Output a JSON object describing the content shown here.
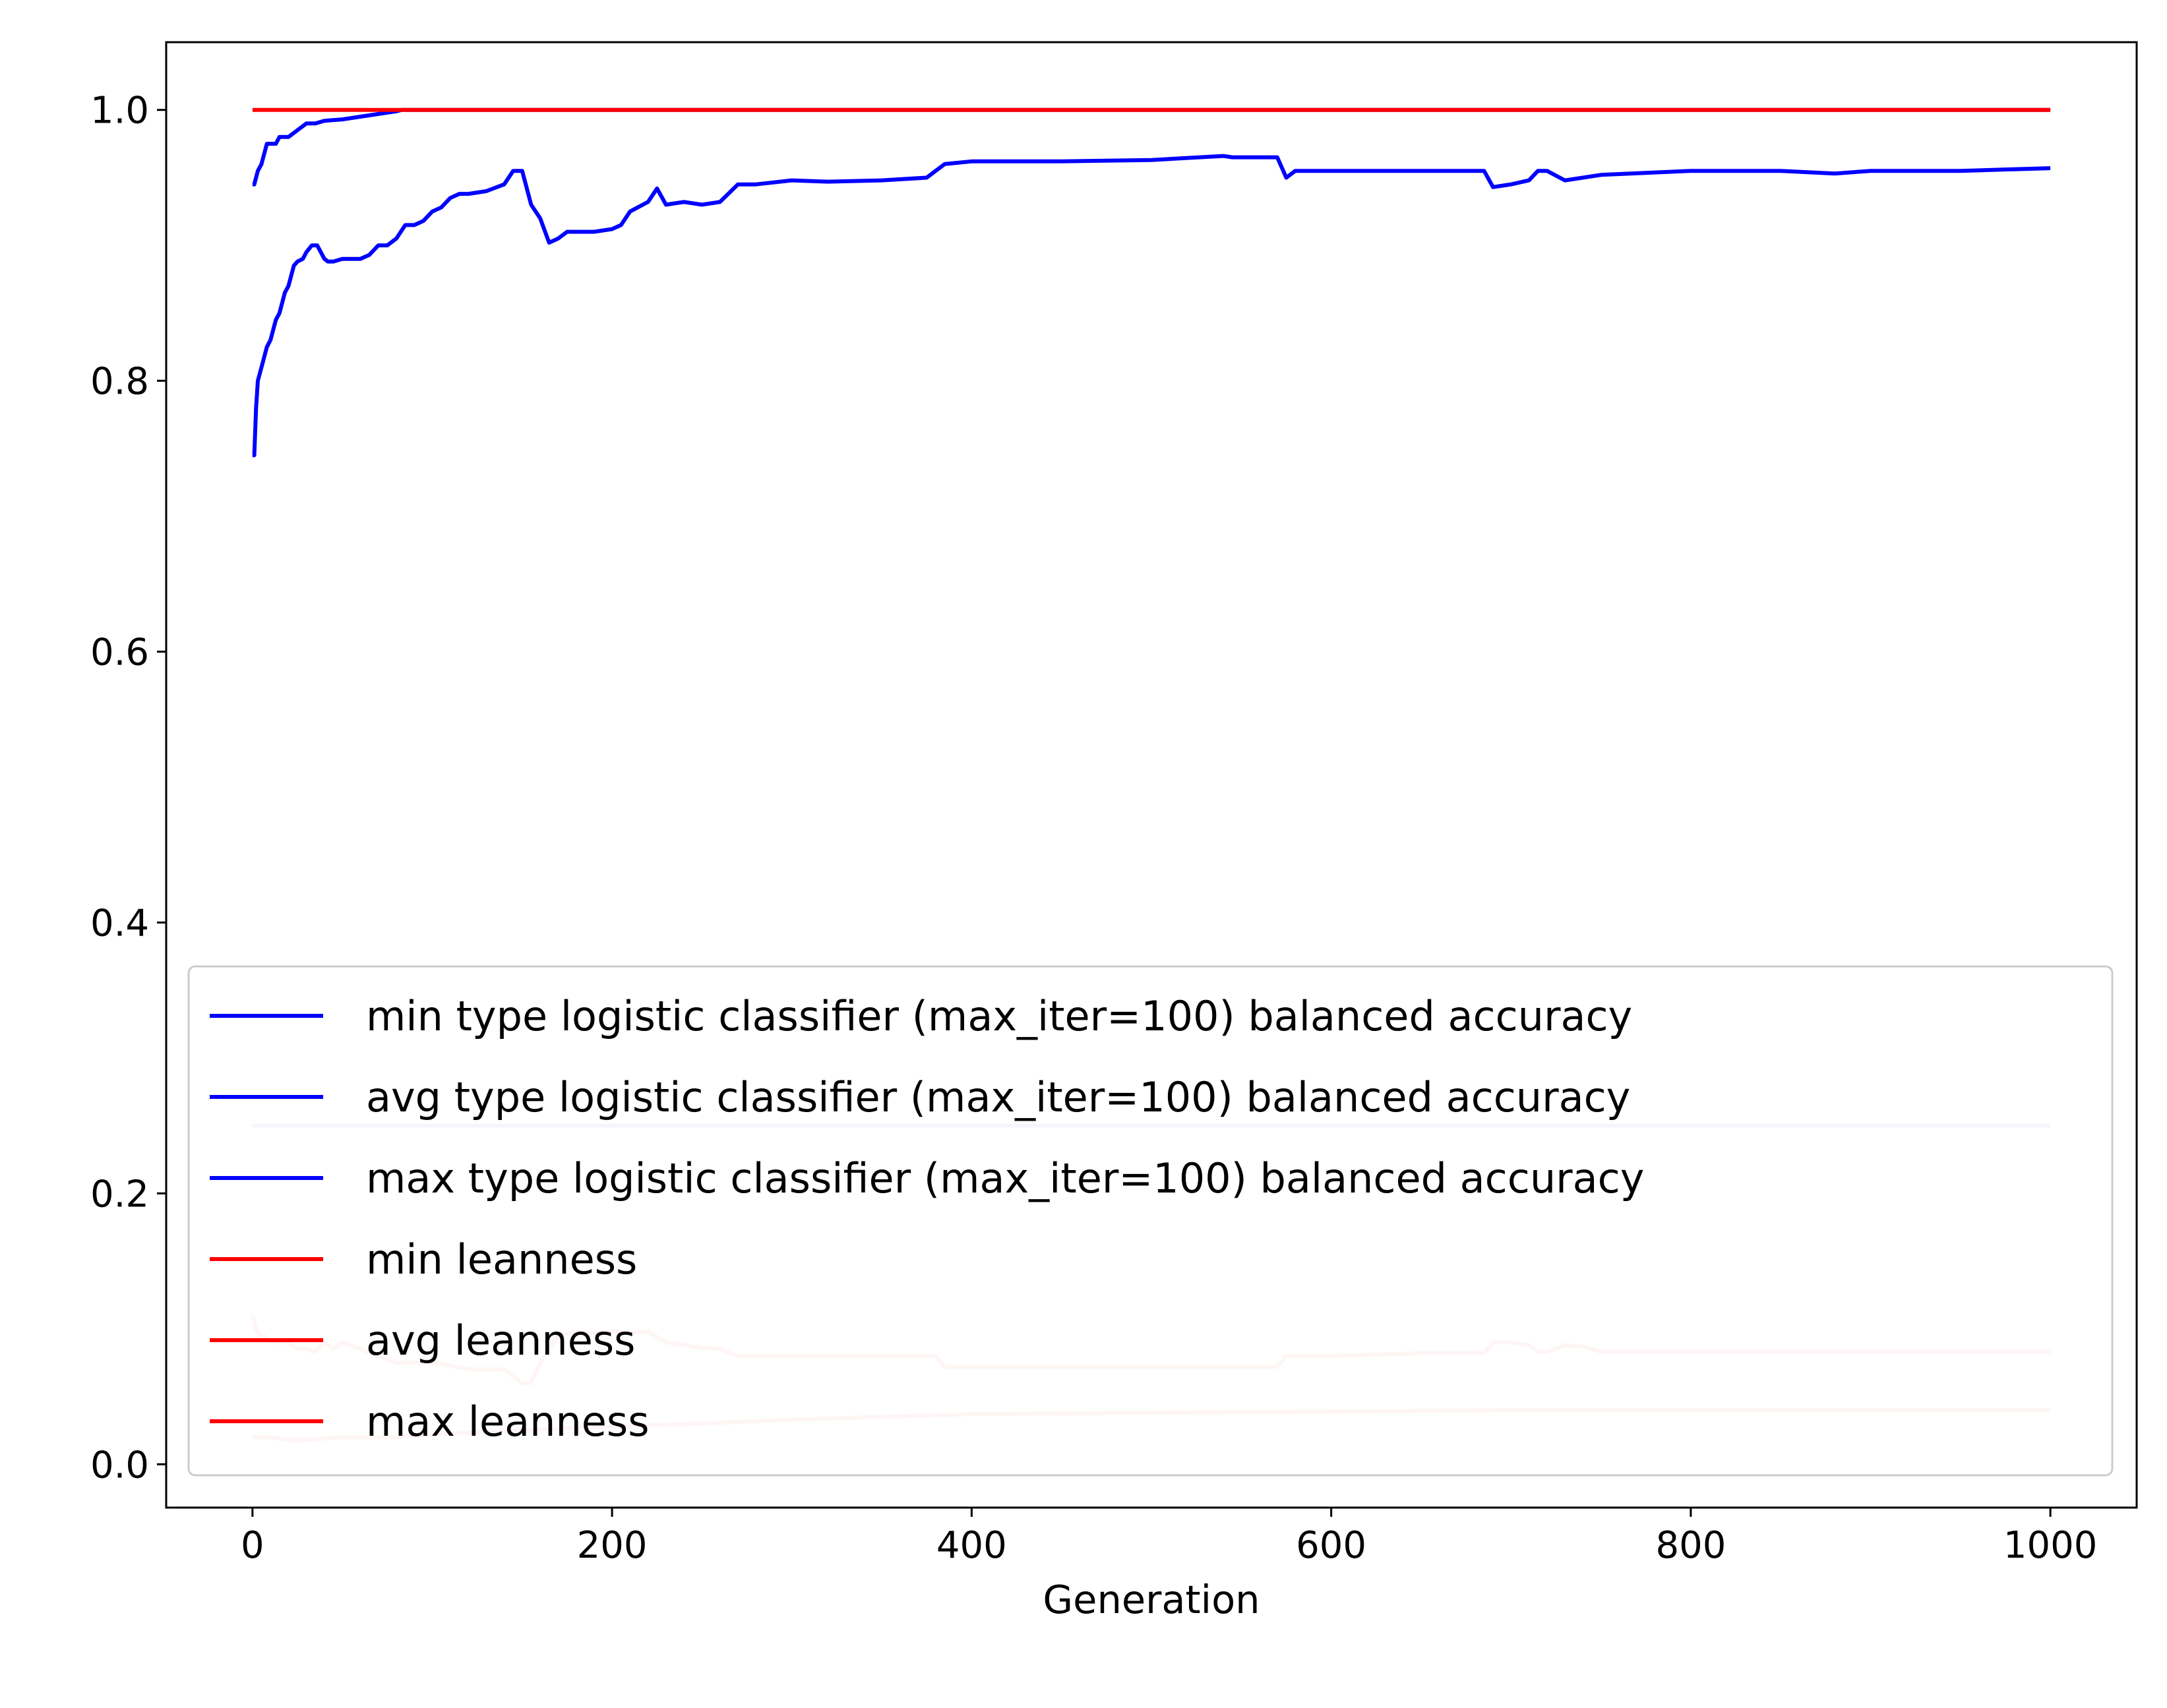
{
  "chart_data": {
    "type": "line",
    "xlabel": "Generation",
    "ylabel": "",
    "xlim": [
      -48,
      1048
    ],
    "ylim": [
      -0.032,
      1.05
    ],
    "xticks": [
      0,
      200,
      400,
      600,
      800,
      1000
    ],
    "yticks": [
      0.0,
      0.2,
      0.4,
      0.6,
      0.8,
      1.0
    ],
    "xtick_labels": [
      "0",
      "200",
      "400",
      "600",
      "800",
      "1000"
    ],
    "ytick_labels": [
      "0.0",
      "0.2",
      "0.4",
      "0.6",
      "0.8",
      "1.0"
    ],
    "grid": false,
    "legend_position": "lower-center",
    "series": [
      {
        "name": "min type logistic classifier (max_iter=100) balanced accuracy",
        "color": "#0000ff",
        "legend_color": "#0000ff",
        "x": [
          0,
          1,
          2,
          3,
          5,
          8,
          10,
          13,
          15,
          18,
          20,
          23,
          25,
          28,
          30,
          33,
          36,
          40,
          42,
          45,
          50,
          55,
          60,
          65,
          70,
          75,
          80,
          85,
          90,
          95,
          100,
          105,
          110,
          115,
          120,
          130,
          140,
          145,
          150,
          155,
          160,
          165,
          170,
          175,
          180,
          190,
          200,
          205,
          210,
          220,
          225,
          230,
          240,
          250,
          260,
          270,
          280,
          300,
          320,
          350,
          375,
          380,
          385,
          400,
          450,
          500,
          540,
          545,
          570,
          575,
          580,
          600,
          650,
          685,
          690,
          700,
          710,
          715,
          720,
          730,
          740,
          750,
          800,
          850,
          880,
          900,
          950,
          1000
        ],
        "y": [
          0.745,
          0.745,
          0.78,
          0.8,
          0.81,
          0.825,
          0.83,
          0.845,
          0.85,
          0.865,
          0.87,
          0.885,
          0.888,
          0.89,
          0.895,
          0.9,
          0.9,
          0.89,
          0.888,
          0.888,
          0.89,
          0.89,
          0.89,
          0.893,
          0.9,
          0.9,
          0.905,
          0.915,
          0.915,
          0.918,
          0.925,
          0.928,
          0.935,
          0.938,
          0.938,
          0.94,
          0.945,
          0.955,
          0.955,
          0.93,
          0.92,
          0.902,
          0.905,
          0.91,
          0.91,
          0.91,
          0.912,
          0.915,
          0.925,
          0.932,
          0.942,
          0.93,
          0.932,
          0.93,
          0.932,
          0.945,
          0.945,
          0.948,
          0.947,
          0.948,
          0.95,
          0.955,
          0.96,
          0.962,
          0.962,
          0.963,
          0.966,
          0.965,
          0.965,
          0.95,
          0.955,
          0.955,
          0.955,
          0.955,
          0.943,
          0.945,
          0.948,
          0.955,
          0.955,
          0.948,
          0.95,
          0.952,
          0.955,
          0.955,
          0.953,
          0.955,
          0.955,
          0.957
        ]
      },
      {
        "name": "avg type logistic classifier (max_iter=100) balanced accuracy",
        "color": "#c8ccf6",
        "legend_color": "#0000ff",
        "x": [
          0,
          1000
        ],
        "y": [
          0.25,
          0.25
        ]
      },
      {
        "name": "max type logistic classifier (max_iter=100) balanced accuracy",
        "color": "#0000ff",
        "legend_color": "#0000ff",
        "x": [
          0,
          1,
          3,
          5,
          8,
          10,
          13,
          15,
          20,
          25,
          30,
          35,
          40,
          50,
          60,
          70,
          80,
          83,
          1000
        ],
        "y": [
          0.945,
          0.945,
          0.955,
          0.96,
          0.975,
          0.975,
          0.975,
          0.98,
          0.98,
          0.985,
          0.99,
          0.99,
          0.992,
          0.993,
          0.995,
          0.997,
          0.999,
          1.0,
          1.0
        ]
      },
      {
        "name": "min leanness",
        "color": "#ff0000",
        "legend_color": "#ff0000",
        "x": [
          0,
          1000
        ],
        "y": [
          1.0,
          1.0
        ]
      },
      {
        "name": "avg leanness",
        "color": "#ffcccc",
        "legend_color": "#ff0000",
        "x": [
          0,
          2,
          4,
          6,
          10,
          14,
          20,
          25,
          30,
          35,
          40,
          45,
          50,
          60,
          70,
          80,
          90,
          100,
          110,
          120,
          130,
          140,
          145,
          150,
          155,
          160,
          165,
          170,
          180,
          190,
          200,
          210,
          220,
          230,
          240,
          250,
          260,
          270,
          300,
          350,
          380,
          385,
          400,
          450,
          500,
          560,
          570,
          575,
          600,
          650,
          685,
          690,
          700,
          710,
          715,
          720,
          730,
          740,
          750,
          800,
          900,
          1000
        ],
        "y": [
          0.11,
          0.1,
          0.095,
          0.095,
          0.09,
          0.09,
          0.09,
          0.085,
          0.085,
          0.083,
          0.09,
          0.085,
          0.09,
          0.085,
          0.08,
          0.075,
          0.075,
          0.075,
          0.073,
          0.07,
          0.07,
          0.07,
          0.065,
          0.06,
          0.06,
          0.075,
          0.085,
          0.095,
          0.098,
          0.097,
          0.098,
          0.097,
          0.098,
          0.09,
          0.088,
          0.086,
          0.085,
          0.08,
          0.08,
          0.08,
          0.08,
          0.072,
          0.072,
          0.072,
          0.072,
          0.072,
          0.072,
          0.08,
          0.08,
          0.082,
          0.082,
          0.09,
          0.09,
          0.088,
          0.083,
          0.083,
          0.088,
          0.087,
          0.083,
          0.083,
          0.083,
          0.083
        ]
      },
      {
        "name": "max leanness",
        "color": "#ffcccc",
        "legend_color": "#ff0000",
        "x": [
          0,
          5,
          10,
          20,
          30,
          50,
          80,
          100,
          150,
          200,
          250,
          300,
          350,
          400,
          500,
          600,
          700,
          800,
          900,
          1000
        ],
        "y": [
          0.02,
          0.02,
          0.02,
          0.018,
          0.018,
          0.02,
          0.02,
          0.022,
          0.025,
          0.028,
          0.03,
          0.033,
          0.035,
          0.037,
          0.038,
          0.039,
          0.04,
          0.04,
          0.04,
          0.04
        ]
      }
    ]
  }
}
